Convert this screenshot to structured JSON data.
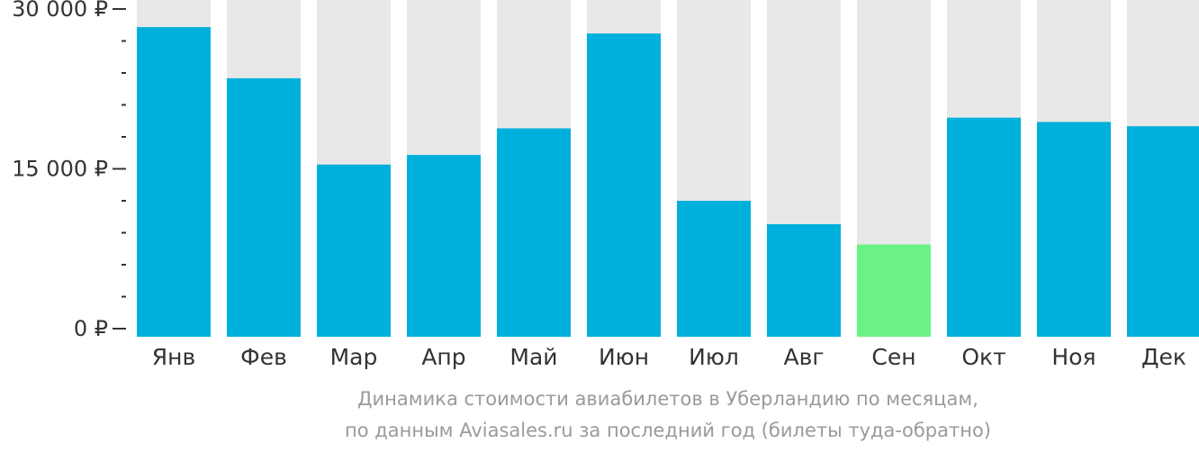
{
  "chart_data": {
    "type": "bar",
    "categories": [
      "Янв",
      "Фев",
      "Мар",
      "Апр",
      "Май",
      "Июн",
      "Июл",
      "Авг",
      "Сен",
      "Окт",
      "Ноя",
      "Дек"
    ],
    "values": [
      28300,
      23500,
      15400,
      16300,
      18800,
      27700,
      12000,
      9800,
      7900,
      19800,
      19400,
      19000
    ],
    "ylim": [
      0,
      30000
    ],
    "y_ticks": [
      {
        "value": 0,
        "label": "0 ₽"
      },
      {
        "value": 15000,
        "label": "15 000 ₽"
      },
      {
        "value": 30000,
        "label": "30 000 ₽"
      }
    ],
    "minor_tick_step": 3000,
    "highlight_index": 8,
    "colors": {
      "bar": "#00b0dc",
      "highlight": "#6bf287",
      "background_bar": "#e8e8e8",
      "axis_text": "#333333",
      "tick": "#333333"
    },
    "grid": false,
    "legend": "none"
  },
  "caption": {
    "line1": "Динамика стоимости авиабилетов в Уберландию по месяцам,",
    "line2": "по данным Aviasales.ru за последний год (билеты туда-обратно)"
  }
}
